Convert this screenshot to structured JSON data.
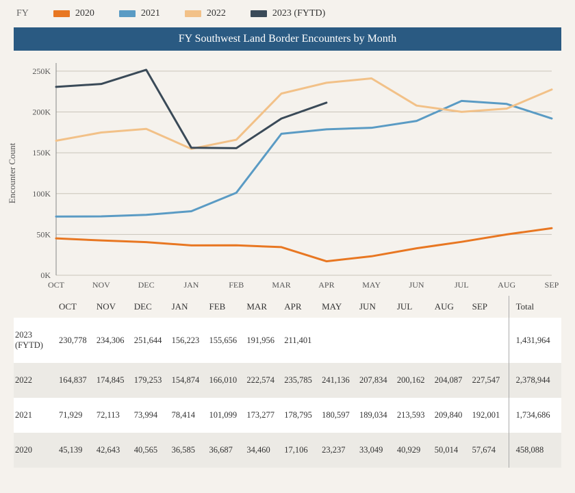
{
  "legend": {
    "title": "FY",
    "items": [
      {
        "label": "2020",
        "color": "#e87722"
      },
      {
        "label": "2021",
        "color": "#5a9bc4"
      },
      {
        "label": "2022",
        "color": "#f2c188"
      },
      {
        "label": "2023 (FYTD)",
        "color": "#3a4a58"
      }
    ]
  },
  "chart": {
    "title": "FY Southwest Land Border Encounters by Month",
    "type": "line",
    "ylabel": "Encounter Count",
    "months": [
      "OCT",
      "NOV",
      "DEC",
      "JAN",
      "FEB",
      "MAR",
      "APR",
      "MAY",
      "JUN",
      "JUL",
      "AUG",
      "SEP"
    ],
    "y_ticks": [
      0,
      50000,
      100000,
      150000,
      200000,
      250000
    ],
    "y_tick_labels": [
      "0K",
      "50K",
      "100K",
      "150K",
      "200K",
      "250K"
    ],
    "ylim": [
      0,
      260000
    ],
    "background_color": "#f5f2ed",
    "grid_color": "#c9c4b9",
    "axis_color": "#888",
    "tick_font_size": 12,
    "line_width": 3,
    "series": [
      {
        "name": "2020",
        "color": "#e87722",
        "values": [
          45139,
          42643,
          40565,
          36585,
          36687,
          34460,
          17106,
          23237,
          33049,
          40929,
          50014,
          57674
        ]
      },
      {
        "name": "2021",
        "color": "#5a9bc4",
        "values": [
          71929,
          72113,
          73994,
          78414,
          101099,
          173277,
          178795,
          180597,
          189034,
          213593,
          209840,
          192001
        ]
      },
      {
        "name": "2022",
        "color": "#f2c188",
        "values": [
          164837,
          174845,
          179253,
          154874,
          166010,
          222574,
          235785,
          241136,
          207834,
          200162,
          204087,
          227547
        ]
      },
      {
        "name": "2023 (FYTD)",
        "color": "#3a4a58",
        "values": [
          230778,
          234306,
          251644,
          156223,
          155656,
          191956,
          211401
        ]
      }
    ]
  },
  "table": {
    "cols": [
      "OCT",
      "NOV",
      "DEC",
      "JAN",
      "FEB",
      "MAR",
      "APR",
      "MAY",
      "JUN",
      "JUL",
      "AUG",
      "SEP"
    ],
    "total_label": "Total",
    "rows": [
      {
        "label": "2023 (FYTD)",
        "cells": [
          "230,778",
          "234,306",
          "251,644",
          "156,223",
          "155,656",
          "191,956",
          "211,401",
          "",
          "",
          "",
          "",
          ""
        ],
        "total": "1,431,964"
      },
      {
        "label": "2022",
        "cells": [
          "164,837",
          "174,845",
          "179,253",
          "154,874",
          "166,010",
          "222,574",
          "235,785",
          "241,136",
          "207,834",
          "200,162",
          "204,087",
          "227,547"
        ],
        "total": "2,378,944"
      },
      {
        "label": "2021",
        "cells": [
          "71,929",
          "72,113",
          "73,994",
          "78,414",
          "101,099",
          "173,277",
          "178,795",
          "180,597",
          "189,034",
          "213,593",
          "209,840",
          "192,001"
        ],
        "total": "1,734,686"
      },
      {
        "label": "2020",
        "cells": [
          "45,139",
          "42,643",
          "40,565",
          "36,585",
          "36,687",
          "34,460",
          "17,106",
          "23,237",
          "33,049",
          "40,929",
          "50,014",
          "57,674"
        ],
        "total": "458,088"
      }
    ]
  }
}
